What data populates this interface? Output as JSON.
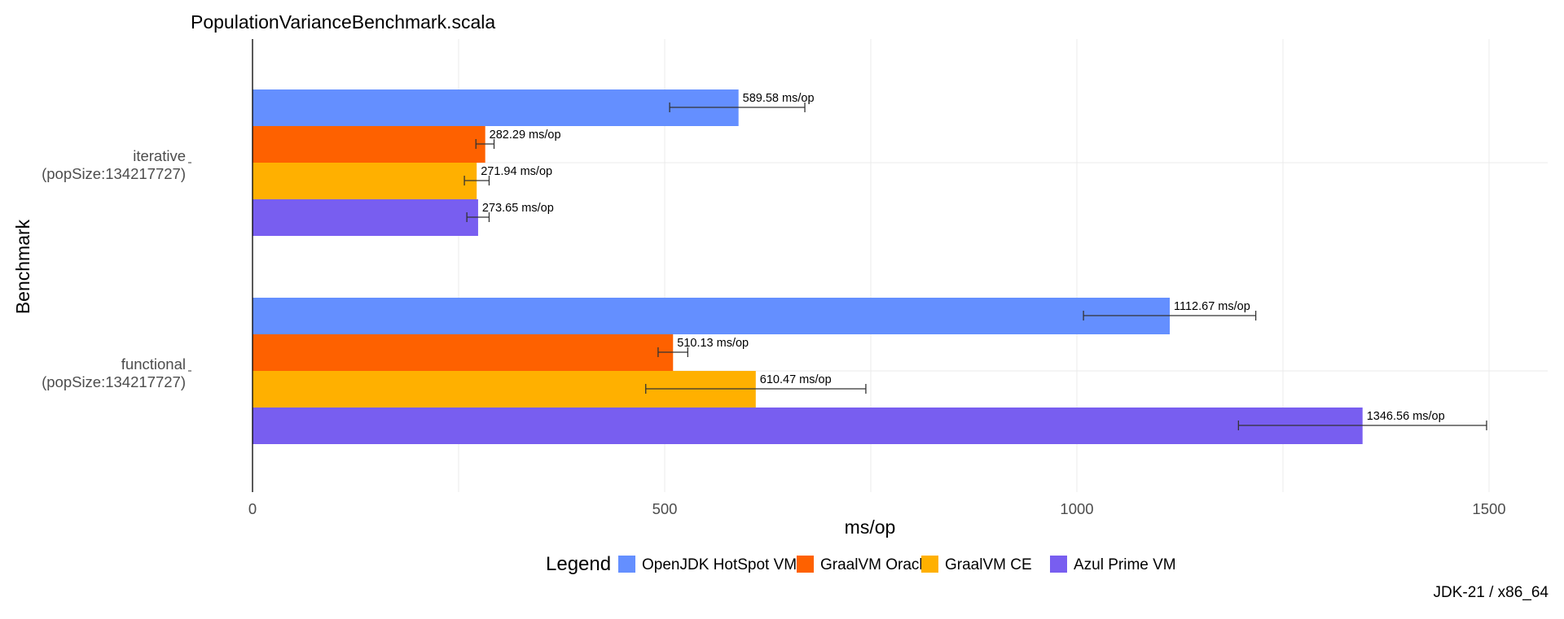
{
  "chart_data": {
    "type": "bar",
    "orientation": "horizontal",
    "title": "PopulationVarianceBenchmark.scala",
    "xlabel": "ms/op",
    "ylabel": "Benchmark",
    "xlim": [
      0,
      1500
    ],
    "xticks": [
      0,
      500,
      1000,
      1500
    ],
    "grid": true,
    "caption": "JDK-21 / x86_64",
    "legend": {
      "title": "Legend",
      "position": "bottom"
    },
    "label_suffix": " ms/op",
    "categories": [
      {
        "line1": "iterative",
        "line2": "(popSize:134217727)"
      },
      {
        "line1": "functional",
        "line2": "(popSize:134217727)"
      }
    ],
    "series": [
      {
        "name": "OpenJDK HotSpot VM",
        "color": "#648FFF",
        "values": [
          589.58,
          1112.67
        ],
        "err_low": [
          506,
          1008
        ],
        "err_high": [
          670,
          1217
        ]
      },
      {
        "name": "GraalVM Oracle",
        "color": "#FE6100",
        "values": [
          282.29,
          510.13
        ],
        "err_low": [
          271,
          492
        ],
        "err_high": [
          293,
          528
        ]
      },
      {
        "name": "GraalVM CE",
        "color": "#FFB000",
        "values": [
          271.94,
          610.47
        ],
        "err_low": [
          257,
          477
        ],
        "err_high": [
          287,
          744
        ]
      },
      {
        "name": "Azul Prime VM",
        "color": "#785EF0",
        "values": [
          273.65,
          1346.56
        ],
        "err_low": [
          260,
          1196
        ],
        "err_high": [
          287,
          1497
        ]
      }
    ]
  }
}
